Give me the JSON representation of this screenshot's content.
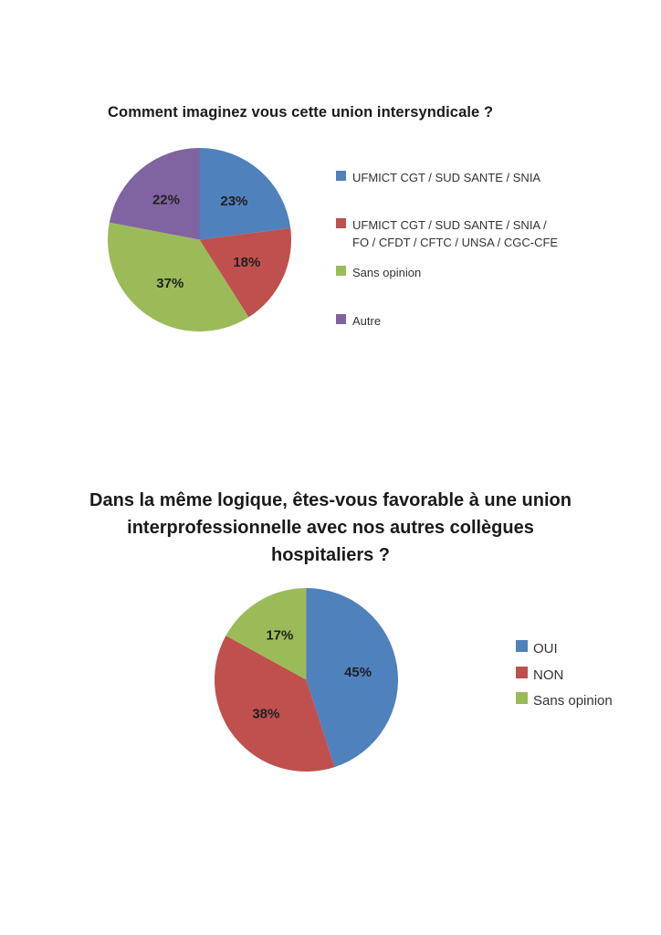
{
  "page": {
    "background": "#ffffff"
  },
  "chart_data": [
    {
      "type": "pie",
      "title": "Comment imaginez vous cette union intersyndicale ?",
      "categories": [
        "UFMICT CGT / SUD SANTE / SNIA",
        "UFMICT CGT / SUD SANTE / SNIA /\nFO / CFDT / CFTC / UNSA / CGC-CFE",
        "Sans opinion",
        "Autre"
      ],
      "values": [
        23,
        18,
        37,
        22
      ],
      "slice_labels": [
        "23%",
        "18%",
        "37%",
        "22%"
      ],
      "colors": [
        "#4F81BD",
        "#C0504D",
        "#9BBB59",
        "#8064A2"
      ],
      "unit": "percent",
      "start_angle_deg": 0,
      "direction": "clockwise",
      "legend_position": "right",
      "slice_label_color": "#1f1f1f"
    },
    {
      "type": "pie",
      "title": "Dans la même logique, êtes-vous favorable à une union\ninterprofessionnelle avec nos autres collègues\nhospitaliers ?",
      "categories": [
        "OUI",
        "NON",
        "Sans opinion"
      ],
      "values": [
        45,
        38,
        17
      ],
      "slice_labels": [
        "45%",
        "38%",
        "17%"
      ],
      "colors": [
        "#4F81BD",
        "#C0504D",
        "#9BBB59"
      ],
      "unit": "percent",
      "start_angle_deg": 0,
      "direction": "clockwise",
      "legend_position": "right",
      "slice_label_color": "#1f1f1f"
    }
  ]
}
